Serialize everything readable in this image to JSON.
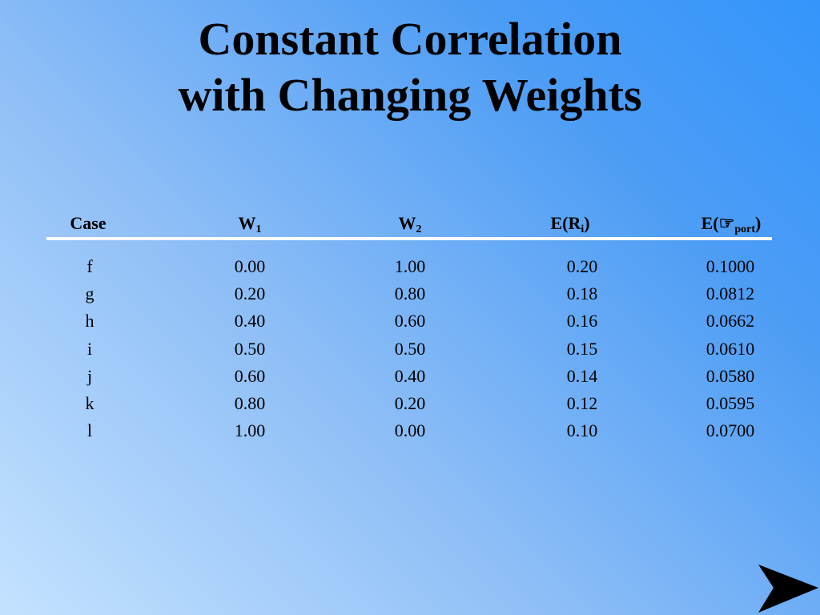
{
  "title": {
    "line1": "Constant Correlation",
    "line2": "with Changing Weights"
  },
  "table": {
    "headers": {
      "case": "Case",
      "w1_base": "W",
      "w1_sub": "1",
      "w2_base": "W",
      "w2_sub": "2",
      "er_base": "E(R",
      "er_sub": "i",
      "er_close": ")",
      "esd_base": "E(",
      "esd_symbol": "☞",
      "esd_sub": "port",
      "esd_close": ")"
    },
    "rows": [
      {
        "case": "f",
        "w1": "0.00",
        "w2": "1.00",
        "er": "0.20",
        "esd": "0.1000"
      },
      {
        "case": "g",
        "w1": "0.20",
        "w2": "0.80",
        "er": "0.18",
        "esd": "0.0812"
      },
      {
        "case": "h",
        "w1": "0.40",
        "w2": "0.60",
        "er": "0.16",
        "esd": "0.0662"
      },
      {
        "case": "i",
        "w1": "0.50",
        "w2": "0.50",
        "er": "0.15",
        "esd": "0.0610"
      },
      {
        "case": "j",
        "w1": "0.60",
        "w2": "0.40",
        "er": "0.14",
        "esd": "0.0580"
      },
      {
        "case": "k",
        "w1": "0.80",
        "w2": "0.20",
        "er": "0.12",
        "esd": "0.0595"
      },
      {
        "case": "l",
        "w1": "1.00",
        "w2": "0.00",
        "er": "0.10",
        "esd": "0.0700"
      }
    ]
  },
  "nav": {
    "next_icon": "next-slide-arrow-icon",
    "arrow_color": "#000000"
  }
}
